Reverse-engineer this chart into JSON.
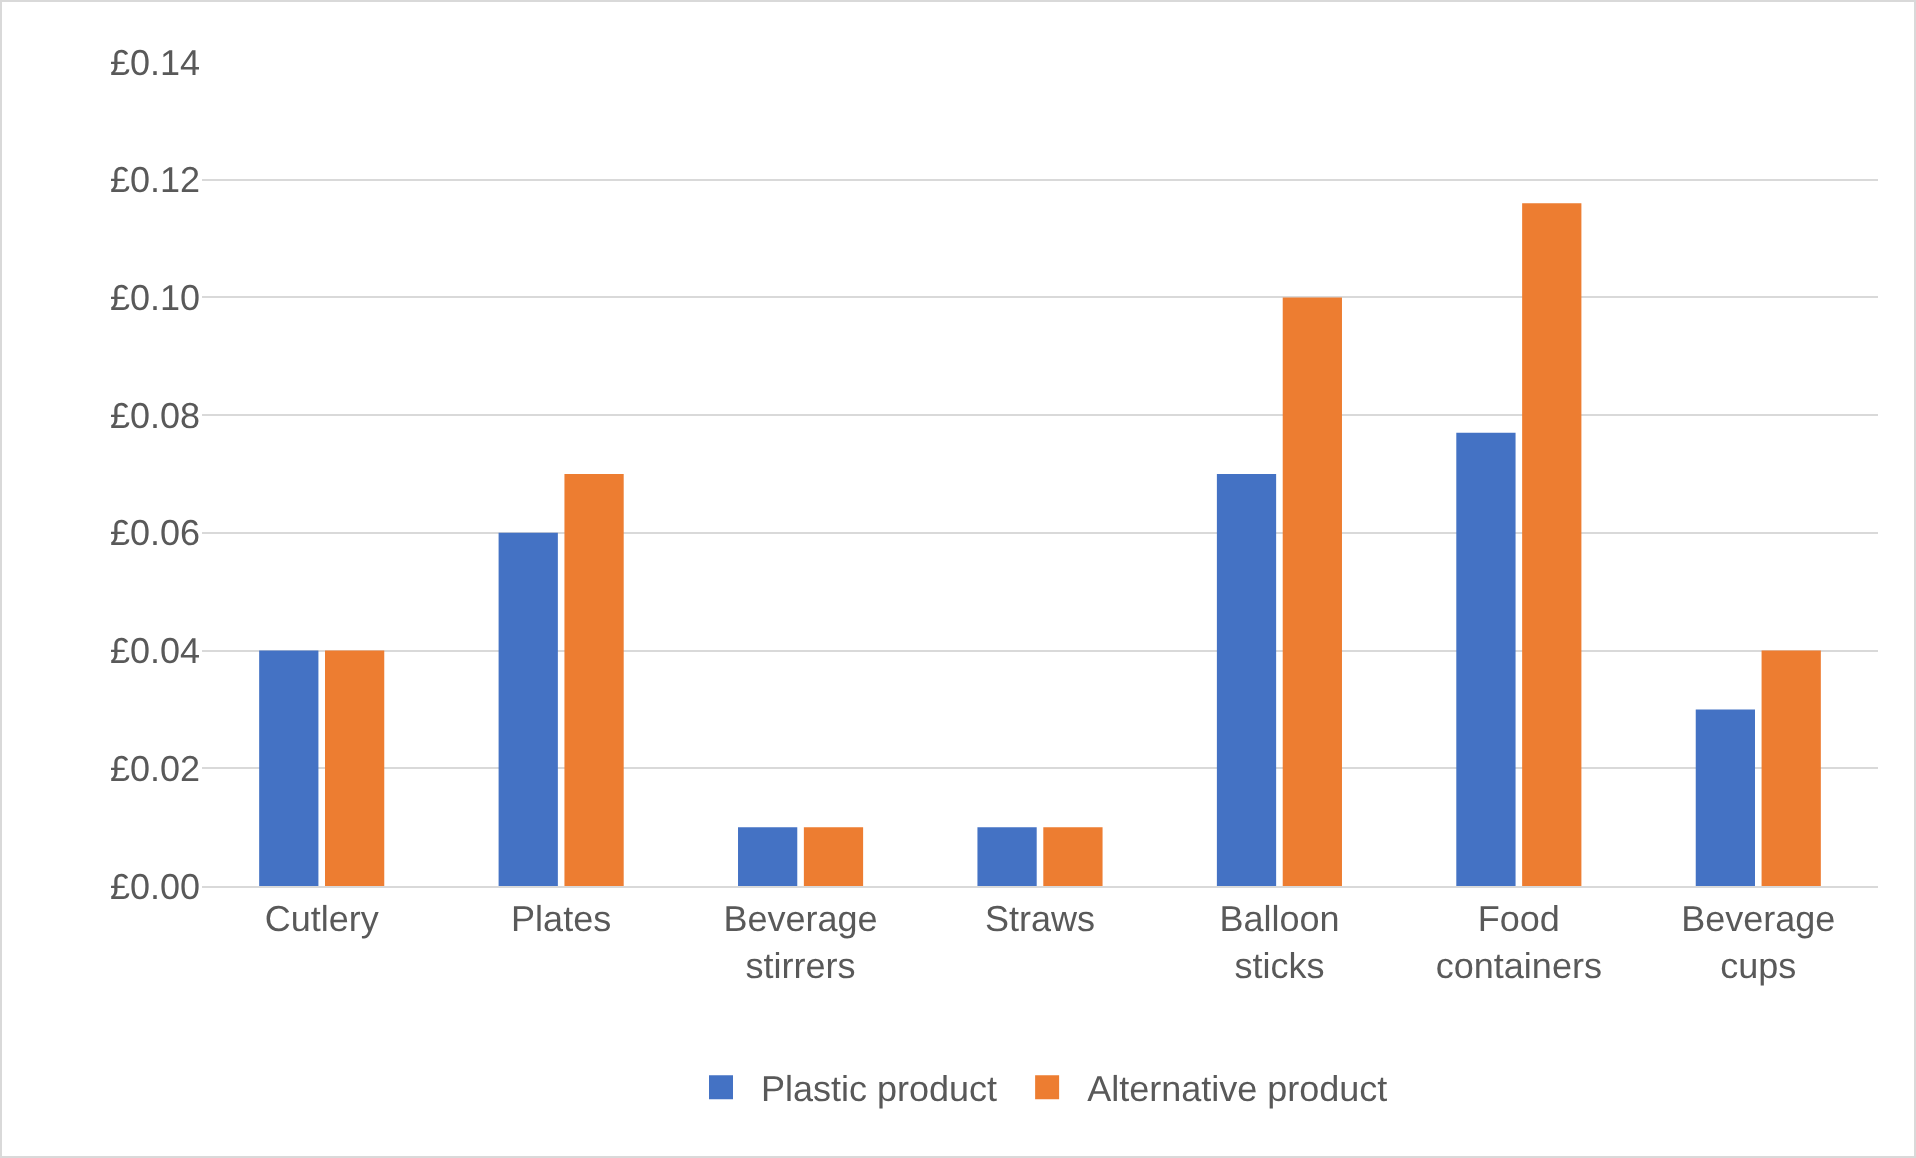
{
  "chart_data": {
    "type": "bar",
    "categories": [
      "Cutlery",
      "Plates",
      "Beverage stirrers",
      "Straws",
      "Balloon sticks",
      "Food containers",
      "Beverage cups"
    ],
    "series": [
      {
        "name": "Plastic product",
        "color": "#4472c4",
        "values": [
          0.04,
          0.06,
          0.01,
          0.01,
          0.07,
          0.077,
          0.03
        ]
      },
      {
        "name": "Alternative product",
        "color": "#ed7d31",
        "values": [
          0.04,
          0.07,
          0.01,
          0.01,
          0.1,
          0.116,
          0.04
        ]
      }
    ],
    "ylim": [
      0,
      0.14
    ],
    "yticks": [
      {
        "value": 0,
        "label": "£0.00"
      },
      {
        "value": 0.02,
        "label": "£0.02"
      },
      {
        "value": 0.04,
        "label": "£0.04"
      },
      {
        "value": 0.06,
        "label": "£0.06"
      },
      {
        "value": 0.08,
        "label": "£0.08"
      },
      {
        "value": 0.1,
        "label": "£0.10"
      },
      {
        "value": 0.12,
        "label": "£0.12"
      },
      {
        "value": 0.14,
        "label": "£0.14"
      }
    ],
    "grid": "y",
    "legend": "bottom"
  }
}
